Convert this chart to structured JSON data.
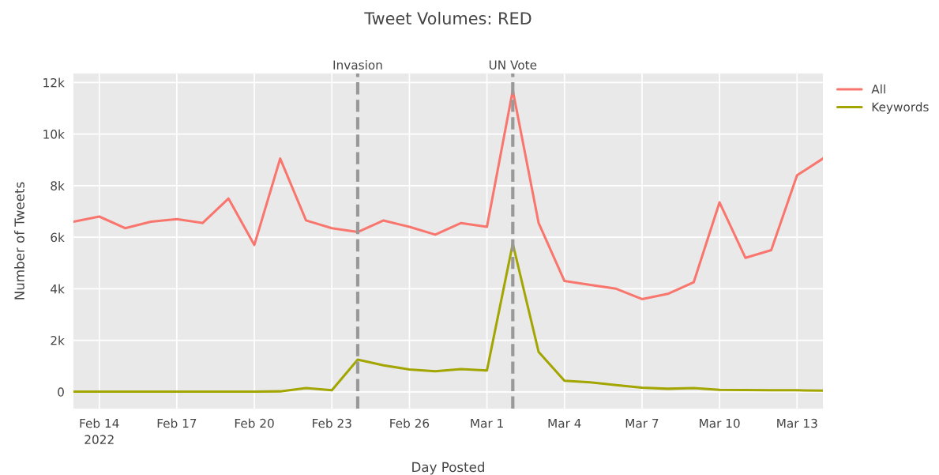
{
  "chart_data": {
    "type": "line",
    "title": "Tweet Volumes: RED",
    "xlabel": "Day Posted",
    "ylabel": "Number of Tweets",
    "x": [
      "2022-02-13",
      "2022-02-14",
      "2022-02-15",
      "2022-02-16",
      "2022-02-17",
      "2022-02-18",
      "2022-02-19",
      "2022-02-20",
      "2022-02-21",
      "2022-02-22",
      "2022-02-23",
      "2022-02-24",
      "2022-02-25",
      "2022-02-26",
      "2022-02-27",
      "2022-02-28",
      "2022-03-01",
      "2022-03-02",
      "2022-03-03",
      "2022-03-04",
      "2022-03-05",
      "2022-03-06",
      "2022-03-07",
      "2022-03-08",
      "2022-03-09",
      "2022-03-10",
      "2022-03-11",
      "2022-03-12",
      "2022-03-13",
      "2022-03-14"
    ],
    "series": [
      {
        "name": "All",
        "color": "#f8766d",
        "values": [
          6600,
          6800,
          6350,
          6600,
          6700,
          6550,
          7500,
          5700,
          9050,
          6650,
          6350,
          6200,
          6650,
          6400,
          6100,
          6550,
          6400,
          11700,
          6550,
          4300,
          4150,
          4000,
          3600,
          3800,
          4250,
          7350,
          5200,
          5500,
          8400,
          9050
        ]
      },
      {
        "name": "Keywords",
        "color": "#a3a500",
        "values": [
          10,
          10,
          10,
          10,
          10,
          10,
          10,
          10,
          20,
          150,
          60,
          1250,
          1030,
          870,
          800,
          880,
          830,
          5750,
          1550,
          430,
          370,
          260,
          160,
          120,
          150,
          80,
          70,
          60,
          60,
          50
        ]
      }
    ],
    "xlim": [
      "2022-02-13",
      "2022-03-14"
    ],
    "xticks": [
      {
        "value": "2022-02-14",
        "label": "Feb 14\n2022"
      },
      {
        "value": "2022-02-17",
        "label": "Feb 17"
      },
      {
        "value": "2022-02-20",
        "label": "Feb 20"
      },
      {
        "value": "2022-02-23",
        "label": "Feb 23"
      },
      {
        "value": "2022-02-26",
        "label": "Feb 26"
      },
      {
        "value": "2022-03-01",
        "label": "Mar 1"
      },
      {
        "value": "2022-03-04",
        "label": "Mar 4"
      },
      {
        "value": "2022-03-07",
        "label": "Mar 7"
      },
      {
        "value": "2022-03-10",
        "label": "Mar 10"
      },
      {
        "value": "2022-03-13",
        "label": "Mar 13"
      }
    ],
    "ylim": [
      -650,
      12350
    ],
    "yticks": [
      0,
      {
        "value": 2000,
        "label": "2k"
      },
      {
        "value": 4000,
        "label": "4k"
      },
      {
        "value": 6000,
        "label": "6k"
      },
      {
        "value": 8000,
        "label": "8k"
      },
      {
        "value": 10000,
        "label": "10k"
      },
      {
        "value": 12000,
        "label": "12k"
      }
    ],
    "ref_lines": [
      {
        "axis": "x",
        "value": "2022-02-24",
        "label": "Invasion",
        "color": "#999999",
        "line_style": "dashed"
      },
      {
        "axis": "x",
        "value": "2022-03-02",
        "label": "UN Vote",
        "color": "#999999",
        "line_style": "dashed"
      }
    ],
    "grid": true,
    "legend": "top right",
    "line_style": "solid",
    "marker": "none"
  }
}
